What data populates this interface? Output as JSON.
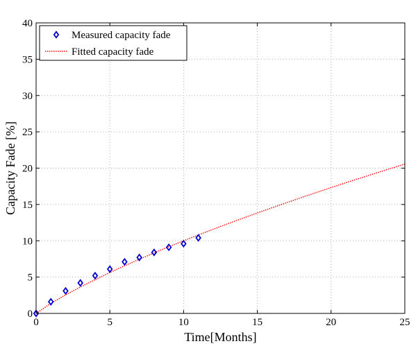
{
  "chart_data": {
    "type": "scatter",
    "title": "",
    "xlabel": "Time[Months]",
    "ylabel": "Capacity Fade [%]",
    "xlim": [
      0,
      25
    ],
    "ylim": [
      0,
      40
    ],
    "xticks": [
      0,
      5,
      10,
      15,
      20,
      25
    ],
    "yticks": [
      0,
      5,
      10,
      15,
      20,
      25,
      30,
      35,
      40
    ],
    "grid": true,
    "legend_position": "top-left",
    "series": [
      {
        "name": "Measured capacity fade",
        "kind": "markers",
        "marker": "diamond",
        "color": "#0000cc",
        "x": [
          0,
          1,
          2,
          3,
          4,
          5,
          6,
          7,
          8,
          9,
          10,
          11
        ],
        "y": [
          0.0,
          1.6,
          3.1,
          4.2,
          5.2,
          6.1,
          7.1,
          7.7,
          8.4,
          9.1,
          9.6,
          10.4
        ]
      },
      {
        "name": "Fitted capacity fade",
        "kind": "dotted-line",
        "color": "#ff0000",
        "x": [
          0,
          1,
          2,
          3,
          4,
          5,
          6,
          7,
          8,
          9,
          10,
          11,
          12,
          13,
          14,
          15,
          16,
          17,
          18,
          19,
          20,
          21,
          22,
          23,
          24,
          25
        ],
        "y": [
          0.0,
          1.38,
          2.55,
          3.63,
          4.65,
          5.63,
          6.56,
          7.46,
          8.33,
          9.18,
          10.0,
          10.8,
          11.58,
          12.34,
          13.1,
          13.83,
          14.55,
          15.26,
          15.96,
          16.64,
          17.32,
          17.99,
          18.64,
          19.29,
          19.93,
          20.56
        ]
      }
    ]
  }
}
